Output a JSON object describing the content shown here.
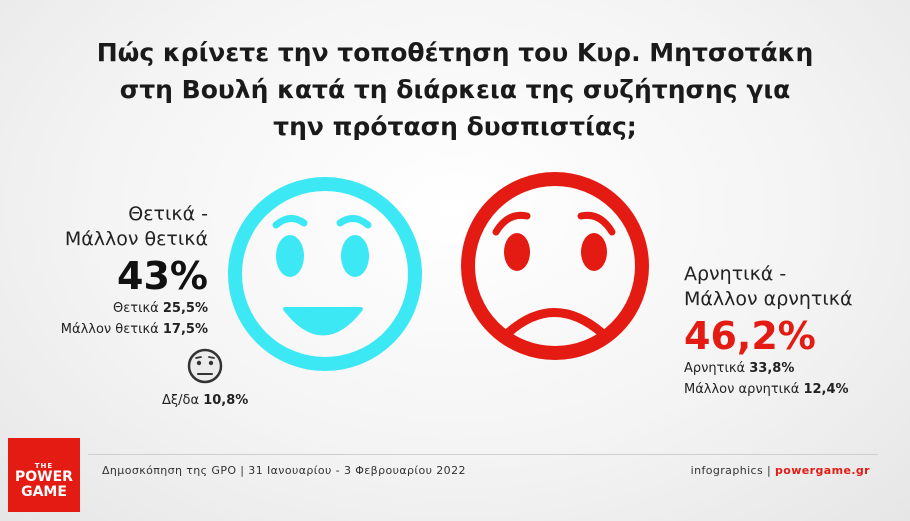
{
  "chart_data": {
    "type": "pie",
    "title": "Πώς κρίνετε την τοποθέτηση του Κυρ. Μητσοτάκη στη Βουλή κατά τη διάρκεια της συζήτησης για την πρόταση δυσπιστίας;",
    "title_lines": [
      "Πώς κρίνετε την τοποθέτηση του Κυρ. Μητσοτάκη",
      "στη Βουλή κατά τη διάρκεια της συζήτησης για",
      "την πρόταση δυσπιστίας;"
    ],
    "categories": [
      "Θετικά - Μάλλον θετικά",
      "Αρνητικά - Μάλλον αρνητικά",
      "Δξ/δα"
    ],
    "values": [
      43,
      46.2,
      10.8
    ],
    "positive": {
      "label_line1": "Θετικά -",
      "label_line2": "Μάλλον θετικά",
      "total": "43%",
      "breakdown": [
        {
          "label": "Θετικά",
          "value": "25,5%"
        },
        {
          "label": "Μάλλον θετικά",
          "value": "17,5%"
        }
      ],
      "color": "#3de8f5"
    },
    "negative": {
      "label_line1": "Αρνητικά -",
      "label_line2": "Μάλλον αρνητικά",
      "total": "46,2%",
      "breakdown": [
        {
          "label": "Αρνητικά",
          "value": "33,8%"
        },
        {
          "label": "Μάλλον αρνητικά",
          "value": "12,4%"
        }
      ],
      "color": "#e41b13"
    },
    "neutral": {
      "label": "Δξ/δα",
      "value": "10,8%"
    }
  },
  "footer": {
    "source": "Δημοσκόπηση της GPO | 31 Ιανουαρίου - 3 Φεβρουαρίου 2022",
    "credit_prefix": "infographics | ",
    "credit_site": "powergame.gr"
  },
  "logo": {
    "the": "THE",
    "power": "POWER",
    "game": "GAME"
  }
}
